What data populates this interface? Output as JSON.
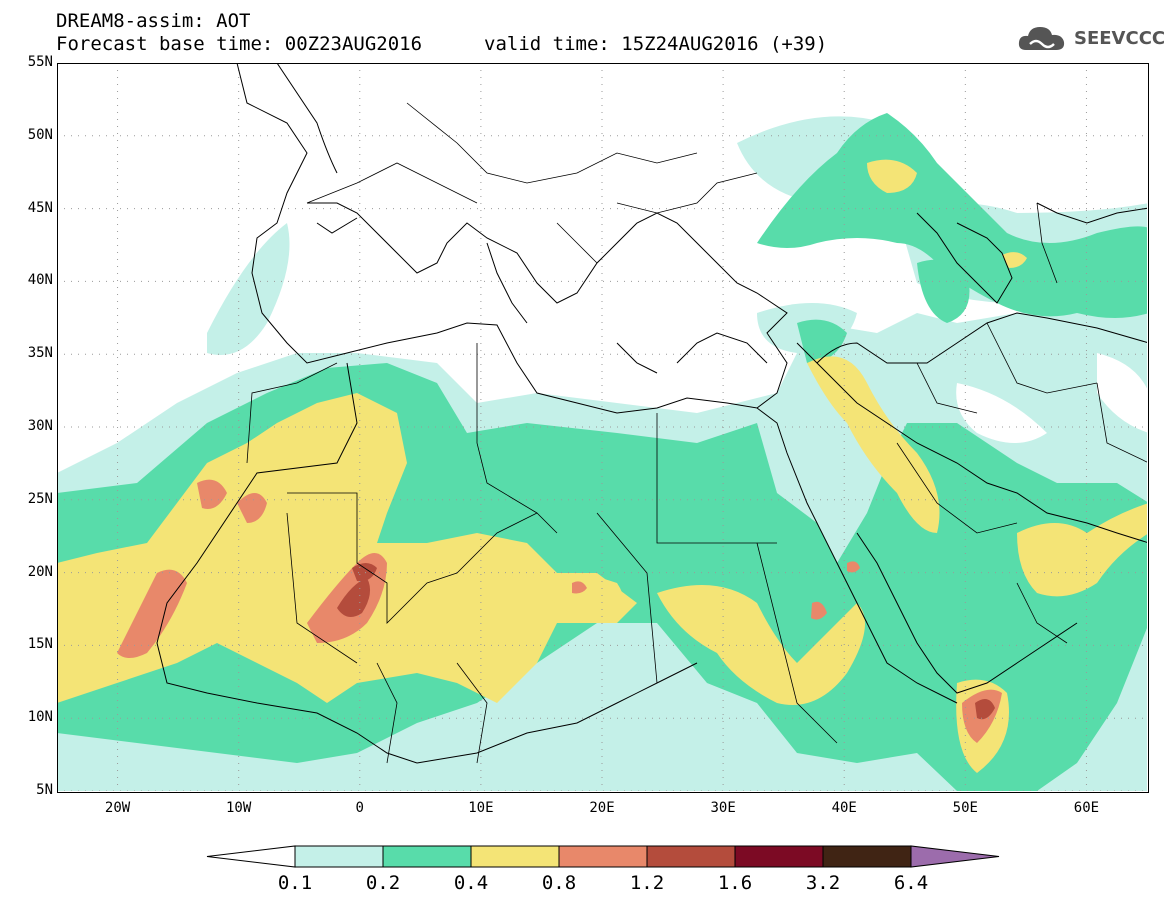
{
  "header": {
    "title": "DREAM8-assim: AOT",
    "base_time": "Forecast base time: 00Z23AUG2016",
    "valid_time": "valid time: 15Z24AUG2016 (+39)"
  },
  "logo": {
    "text": "SEEVCCC",
    "icon": "cloud-icon",
    "color": "#555555"
  },
  "map": {
    "lon_range": [
      -25,
      65
    ],
    "lat_range": [
      5,
      55
    ],
    "lat_labels": [
      "55N",
      "50N",
      "45N",
      "40N",
      "35N",
      "30N",
      "25N",
      "20N",
      "15N",
      "10N",
      "5N"
    ],
    "lon_labels": [
      "20W",
      "10W",
      "0",
      "10E",
      "20E",
      "30E",
      "40E",
      "50E",
      "60E"
    ],
    "grid": "dotted"
  },
  "colorbar": {
    "colors": [
      "#ffffff",
      "#c4f0e8",
      "#58dcaa",
      "#f4e476",
      "#e8886a",
      "#b44c3c",
      "#7c0a24",
      "#402414",
      "#9c6cac"
    ],
    "labels": [
      "0.1",
      "0.2",
      "0.4",
      "0.8",
      "1.2",
      "1.6",
      "3.2",
      "6.4"
    ]
  }
}
